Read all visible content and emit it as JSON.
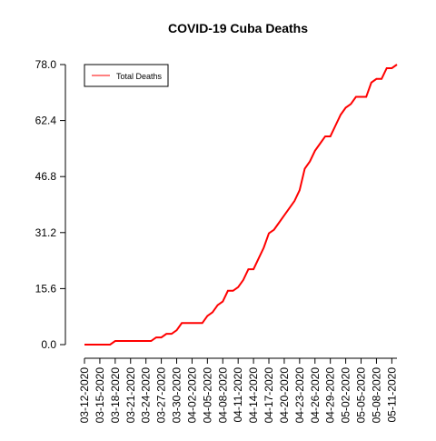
{
  "chart_data": {
    "type": "line",
    "title": "COVID-19 Cuba Deaths",
    "categories": [
      "03-12-2020",
      null,
      null,
      "03-15-2020",
      null,
      null,
      "03-18-2020",
      null,
      null,
      "03-21-2020",
      null,
      null,
      "03-24-2020",
      null,
      null,
      "03-27-2020",
      null,
      null,
      "03-30-2020",
      null,
      null,
      "04-02-2020",
      null,
      null,
      "04-05-2020",
      null,
      null,
      "04-08-2020",
      null,
      null,
      "04-11-2020",
      null,
      null,
      "04-14-2020",
      null,
      null,
      "04-17-2020",
      null,
      null,
      "04-20-2020",
      null,
      null,
      "04-23-2020",
      null,
      null,
      "04-26-2020",
      null,
      null,
      "04-29-2020",
      null,
      null,
      "05-02-2020",
      null,
      null,
      "05-05-2020",
      null,
      null,
      "05-08-2020",
      null,
      null,
      "05-11-2020",
      null
    ],
    "series": [
      {
        "name": "Total Deaths",
        "color": "#ff0000",
        "values": [
          0,
          0,
          0,
          0,
          0,
          0,
          1,
          1,
          1,
          1,
          1,
          1,
          1,
          1,
          2,
          2,
          3,
          3,
          4,
          6,
          6,
          6,
          6,
          6,
          8,
          9,
          11,
          12,
          15,
          15,
          16,
          18,
          21,
          21,
          24,
          27,
          31,
          32,
          34,
          36,
          38,
          40,
          43,
          49,
          51,
          54,
          56,
          58,
          58,
          61,
          64,
          66,
          67,
          69,
          69,
          69,
          73,
          74,
          74,
          77,
          77,
          78
        ]
      }
    ],
    "ylim": [
      0,
      78
    ],
    "yticks": [
      {
        "value": 0,
        "label": "0.0"
      },
      15.6,
      31.2,
      46.8,
      62.4,
      {
        "value": 78,
        "label": "78.0"
      }
    ],
    "legend": "top-left"
  }
}
